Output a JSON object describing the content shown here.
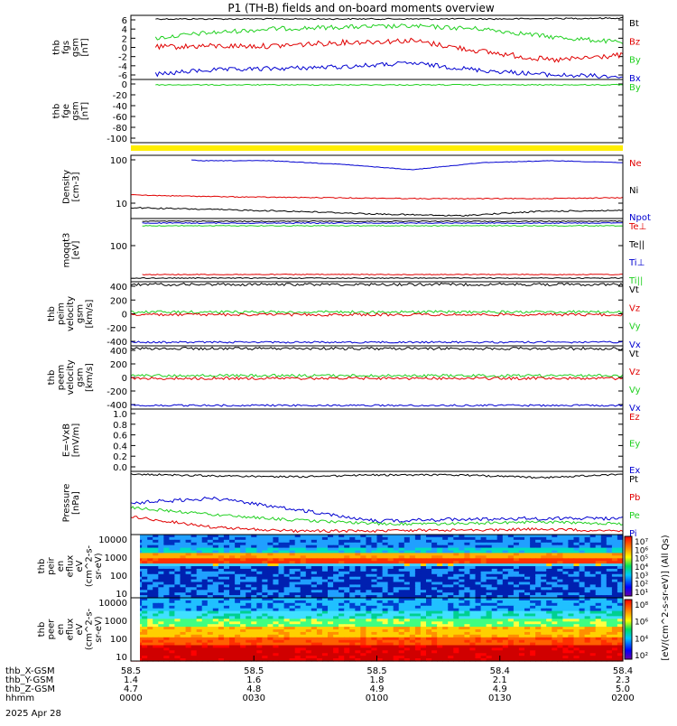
{
  "page": {
    "title": "P1  (TH-B) fields and on-board moments overview",
    "date": "2025 Apr 28",
    "colorbar_units": "[eV/(cm^2-s-sr-eV)] (All Qs)"
  },
  "colors": {
    "black": "#000000",
    "red": "#e00000",
    "green": "#20d020",
    "blue": "#0000d0",
    "yellow": "#ffee00"
  },
  "panels": [
    {
      "id": "fgs-gsm-bfield",
      "ylabel": [
        "thb",
        "fgs",
        "gsm",
        "[nT]"
      ],
      "yticks": [
        "6",
        "4",
        "2",
        "0",
        "-2",
        "-4",
        "-6"
      ],
      "legend": [
        {
          "label": "Bt",
          "color": "black"
        },
        {
          "label": "Bz",
          "color": "red"
        },
        {
          "label": "By",
          "color": "green"
        },
        {
          "label": "Bx",
          "color": "blue"
        }
      ]
    },
    {
      "id": "fgs-gsm-by",
      "ylabel": [
        "thb",
        "fge",
        "gsm",
        "[nT]"
      ],
      "yticks": [
        "0",
        "-20",
        "-40",
        "-60",
        "-80",
        "-100"
      ],
      "legend": [
        {
          "label": "By",
          "color": "green"
        }
      ]
    },
    {
      "id": "density",
      "ylabel": [
        "Density",
        "[cm-3]"
      ],
      "yticks": [
        "100",
        "10"
      ],
      "legend": [
        {
          "label": "Ne",
          "color": "red"
        },
        {
          "label": "Ni",
          "color": "black"
        },
        {
          "label": "Npot",
          "color": "blue"
        }
      ]
    },
    {
      "id": "temperature",
      "ylabel": [
        "moqqt3",
        "[eV]"
      ],
      "yticks": [
        "100"
      ],
      "legend": [
        {
          "label": "Te⊥",
          "color": "red"
        },
        {
          "label": "Te||",
          "color": "black"
        },
        {
          "label": "Ti⊥",
          "color": "blue"
        },
        {
          "label": "Ti||",
          "color": "green"
        }
      ]
    },
    {
      "id": "peim-velocity",
      "ylabel": [
        "thb",
        "peim",
        "velocity",
        "gsm",
        "[km/s]"
      ],
      "yticks": [
        "400",
        "200",
        "0",
        "-200",
        "-400"
      ],
      "legend": [
        {
          "label": "Vt",
          "color": "black"
        },
        {
          "label": "Vz",
          "color": "red"
        },
        {
          "label": "Vy",
          "color": "green"
        },
        {
          "label": "Vx",
          "color": "blue"
        }
      ]
    },
    {
      "id": "peem-velocity",
      "ylabel": [
        "thb",
        "peem",
        "velocity",
        "gsm",
        "[km/s]"
      ],
      "yticks": [
        "400",
        "200",
        "0",
        "-200",
        "-400"
      ],
      "legend": [
        {
          "label": "Vt",
          "color": "black"
        },
        {
          "label": "Vz",
          "color": "red"
        },
        {
          "label": "Vy",
          "color": "green"
        },
        {
          "label": "Vx",
          "color": "blue"
        }
      ]
    },
    {
      "id": "efield",
      "ylabel": [
        "E=-VxB",
        "[mV/m]"
      ],
      "yticks": [
        "1.0",
        "0.8",
        "0.6",
        "0.4",
        "0.2",
        "0.0"
      ],
      "legend": [
        {
          "label": "Ez",
          "color": "red"
        },
        {
          "label": "Ey",
          "color": "green"
        },
        {
          "label": "Ex",
          "color": "blue"
        }
      ]
    },
    {
      "id": "pressure",
      "ylabel": [
        "Pressure",
        "[nPa]"
      ],
      "yticks": [],
      "legend": [
        {
          "label": "Pt",
          "color": "black"
        },
        {
          "label": "Pb",
          "color": "red"
        },
        {
          "label": "Pe",
          "color": "green"
        },
        {
          "label": "Pi",
          "color": "blue"
        }
      ]
    },
    {
      "id": "peir-spectrogram",
      "ylabel": [
        "thb",
        "peir",
        "en",
        "eflux",
        "eV",
        "(cm^2-s-",
        "sr-eV)"
      ],
      "yticks": [
        "10000",
        "1000",
        "100",
        "10"
      ],
      "cbar_ticks": [
        "10⁷",
        "10⁶",
        "10⁵",
        "10⁴",
        "10³",
        "10²",
        "10¹"
      ]
    },
    {
      "id": "peer-spectrogram",
      "ylabel": [
        "thb",
        "peer",
        "en",
        "eflux",
        "eV",
        "(cm^2-s-",
        "sr-eV)"
      ],
      "yticks": [
        "10000",
        "1000",
        "100",
        "10"
      ],
      "cbar_ticks": [
        "10⁸",
        "10⁶",
        "10⁴",
        "10²"
      ]
    }
  ],
  "xaxis": {
    "rows": [
      {
        "label": "thb_X-GSM",
        "values": [
          "58.5",
          "58.5",
          "58.5",
          "58.4",
          "58.4"
        ]
      },
      {
        "label": "thb_Y-GSM",
        "values": [
          "1.4",
          "1.6",
          "1.8",
          "2.1",
          "2.3"
        ]
      },
      {
        "label": "thb_Z-GSM",
        "values": [
          "4.7",
          "4.8",
          "4.9",
          "4.9",
          "5.0"
        ]
      },
      {
        "label": "hhmm",
        "values": [
          "0000",
          "0030",
          "0100",
          "0130",
          "0200"
        ]
      }
    ]
  },
  "chart_data": {
    "type": "line",
    "title": "P1  (TH-B) fields and on-board moments overview",
    "x": [
      "0000",
      "0030",
      "0100",
      "0130",
      "0200"
    ],
    "series": [
      {
        "name": "Bt",
        "panel": "fgs-gsm-bfield",
        "values": [
          6.0,
          6.0,
          6.0,
          6.1,
          6.3
        ]
      },
      {
        "name": "Bz",
        "panel": "fgs-gsm-bfield",
        "values": [
          2.8,
          1.5,
          1.8,
          1.0,
          0.0
        ]
      },
      {
        "name": "By",
        "panel": "fgs-gsm-bfield",
        "values": [
          3.5,
          4.5,
          5.2,
          5.0,
          4.5
        ]
      },
      {
        "name": "Bx",
        "panel": "fgs-gsm-bfield",
        "values": [
          -6.2,
          -5.5,
          -4.5,
          -4.0,
          -6.0
        ]
      },
      {
        "name": "By",
        "panel": "fgs-gsm-by",
        "values": [
          -0.5,
          -0.5,
          -0.5,
          -0.5,
          -0.5
        ]
      },
      {
        "name": "Ne",
        "panel": "density",
        "values": [
          15,
          13,
          12,
          12,
          12
        ]
      },
      {
        "name": "Ni",
        "panel": "density",
        "values": [
          7,
          6,
          5,
          6,
          6
        ]
      },
      {
        "name": "Npot",
        "panel": "density",
        "values": [
          100,
          95,
          65,
          85,
          80
        ]
      },
      {
        "name": "Te||",
        "panel": "temperature",
        "values": [
          220,
          220,
          220,
          220,
          220
        ]
      },
      {
        "name": "Ti⊥",
        "panel": "temperature",
        "values": [
          200,
          200,
          200,
          200,
          200
        ]
      },
      {
        "name": "Ti||",
        "panel": "temperature",
        "values": [
          185,
          185,
          185,
          185,
          185
        ]
      },
      {
        "name": "Te⊥",
        "panel": "temperature",
        "values": [
          10,
          10,
          10,
          10,
          10
        ]
      },
      {
        "name": "Vt",
        "panel": "peim-velocity",
        "values": [
          380,
          380,
          380,
          380,
          380
        ]
      },
      {
        "name": "Vz",
        "panel": "peim-velocity",
        "values": [
          0,
          0,
          0,
          5,
          0
        ]
      },
      {
        "name": "Vy",
        "panel": "peim-velocity",
        "values": [
          10,
          10,
          10,
          10,
          10
        ]
      },
      {
        "name": "Vx",
        "panel": "peim-velocity",
        "values": [
          -380,
          -380,
          -380,
          -380,
          -380
        ]
      },
      {
        "name": "Vt",
        "panel": "peem-velocity",
        "values": [
          380,
          380,
          380,
          380,
          380
        ]
      },
      {
        "name": "Vz",
        "panel": "peem-velocity",
        "values": [
          -10,
          -10,
          -10,
          -10,
          -10
        ]
      },
      {
        "name": "Vy",
        "panel": "peem-velocity",
        "values": [
          30,
          30,
          30,
          30,
          30
        ]
      },
      {
        "name": "Vx",
        "panel": "peem-velocity",
        "values": [
          -370,
          -370,
          -370,
          -370,
          -370
        ]
      },
      {
        "name": "Pt",
        "panel": "pressure",
        "values": [
          1.0,
          0.9,
          0.95,
          0.95,
          0.9
        ]
      },
      {
        "name": "Pi",
        "panel": "pressure",
        "values": [
          0.6,
          0.55,
          0.3,
          0.35,
          0.4
        ]
      },
      {
        "name": "Pe",
        "panel": "pressure",
        "values": [
          0.3,
          0.25,
          0.2,
          0.2,
          0.2
        ]
      },
      {
        "name": "Pb",
        "panel": "pressure",
        "values": [
          0.2,
          0.1,
          0.1,
          0.1,
          0.1
        ]
      }
    ]
  }
}
